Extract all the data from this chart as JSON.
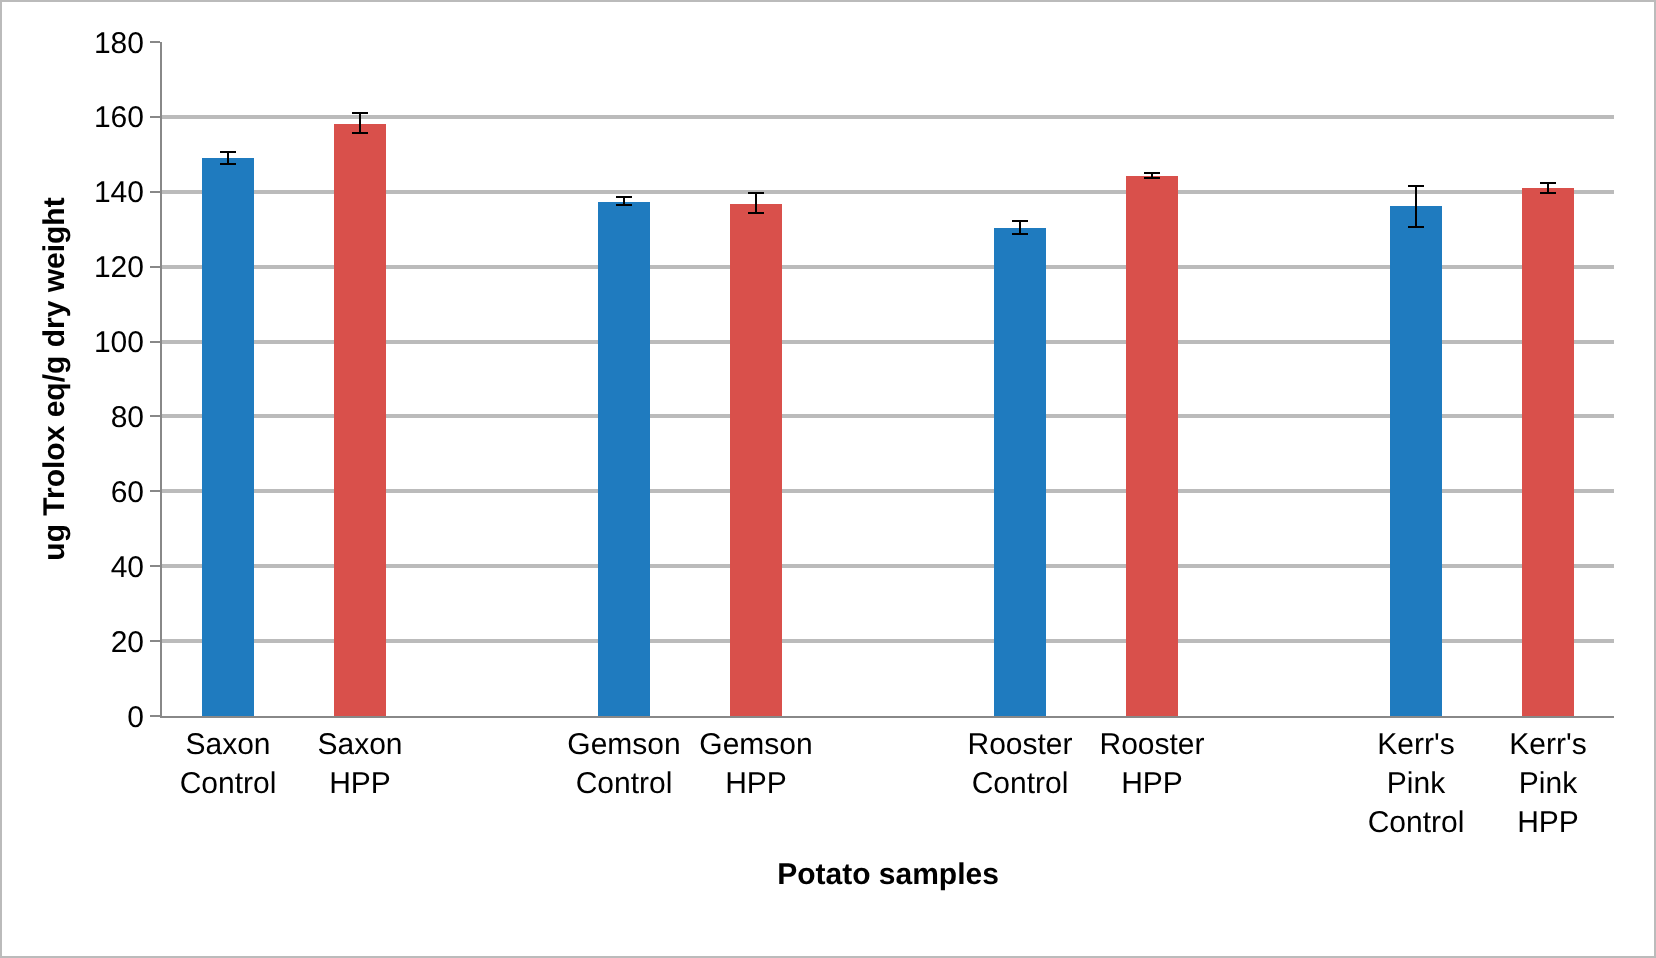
{
  "chart_data": {
    "type": "bar",
    "xlabel": "Potato samples",
    "ylabel": "ug Trolox eq/g dry weight",
    "categories": [
      "Saxon Control",
      "Saxon HPP",
      null,
      "Gemson Control",
      "Gemson HPP",
      null,
      "Rooster Control",
      "Rooster HPP",
      null,
      "Kerr's Pink Control",
      "Kerr's Pink HPP"
    ],
    "values": [
      149,
      158.3,
      null,
      137.5,
      137,
      null,
      130.5,
      144.3,
      null,
      136,
      141
    ],
    "errors": [
      1.5,
      2.7,
      null,
      1,
      2.6,
      null,
      1.7,
      0.7,
      null,
      5.5,
      1.4
    ],
    "colors": [
      "#1f7bbf",
      "#d9504b",
      "#ffffff",
      "#1f7bbf",
      "#d9504b",
      "#ffffff",
      "#1f7bbf",
      "#d9504b",
      "#ffffff",
      "#1f7bbf",
      "#d9504b"
    ],
    "ylim": [
      0,
      180
    ],
    "yticks": [
      0,
      20,
      40,
      60,
      80,
      100,
      120,
      140,
      160,
      180
    ],
    "grid": "y"
  }
}
